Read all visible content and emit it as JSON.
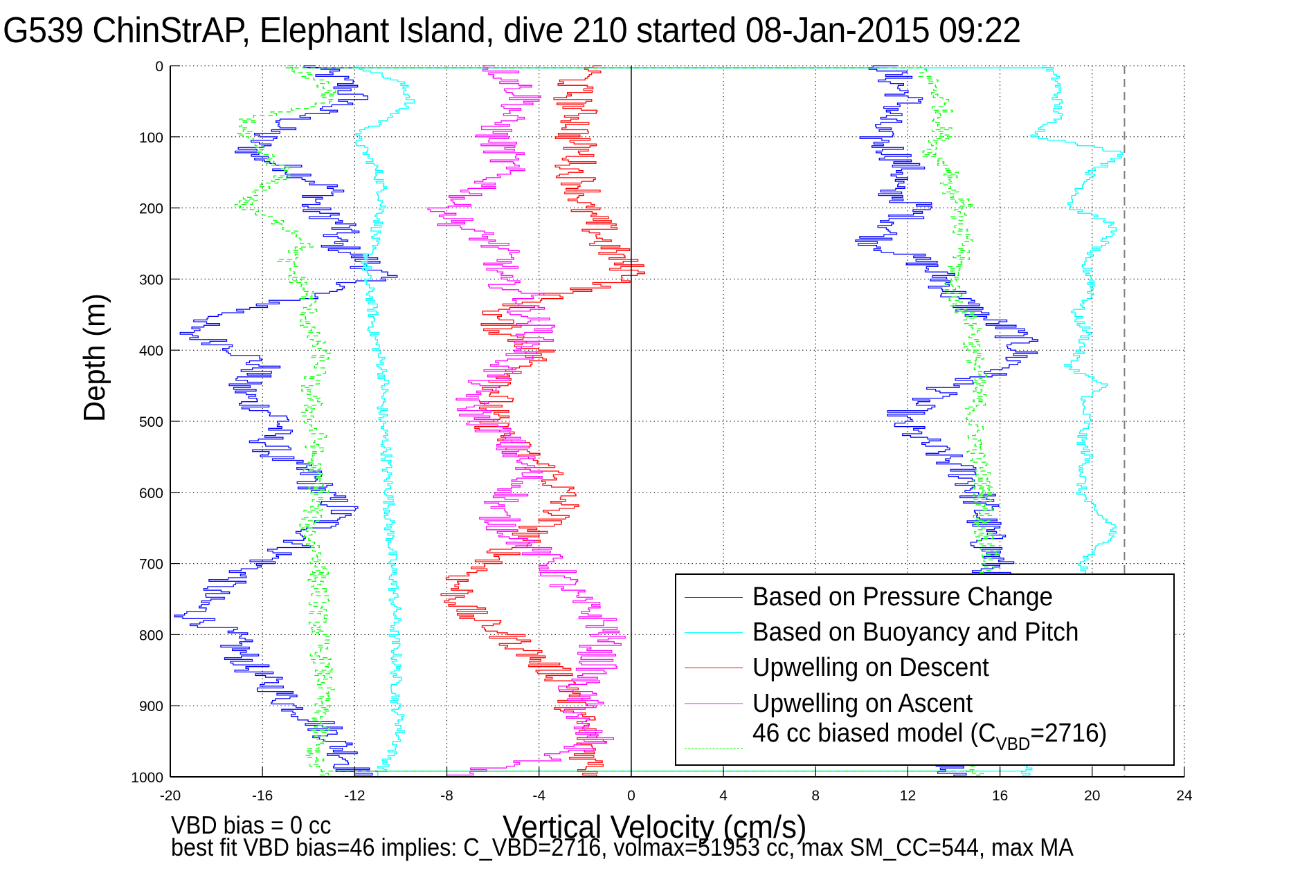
{
  "chart_data": {
    "type": "line",
    "title": "G539 ChinStrAP, Elephant Island, dive 210 started 08-Jan-2015 09:22",
    "xlabel": "Vertical Velocity (cm/s)",
    "ylabel": "Depth (m)",
    "xlim": [
      -20,
      24
    ],
    "ylim": [
      0,
      1000
    ],
    "y_reversed": true,
    "grid": true,
    "xticks": [
      "-20",
      "-16",
      "-12",
      "-8",
      "-4",
      "0",
      "4",
      "8",
      "12",
      "16",
      "20",
      "24"
    ],
    "xtick_values": [
      -20,
      -16,
      -12,
      -8,
      -4,
      0,
      4,
      8,
      12,
      16,
      20,
      24
    ],
    "yticks": [
      "0",
      "100",
      "200",
      "300",
      "400",
      "500",
      "600",
      "700",
      "800",
      "900",
      "1000"
    ],
    "ytick_values": [
      0,
      100,
      200,
      300,
      400,
      500,
      600,
      700,
      800,
      900,
      1000
    ],
    "zero_line_x": 0,
    "reference_line": {
      "x": 21.4,
      "style": "dashed",
      "color": "#808080"
    },
    "legend_position": "bottom-right",
    "depth_step_m": 25,
    "series": [
      {
        "name": "Based on Pressure Change",
        "color": "#0000ff",
        "style": "solid",
        "noise": 0.9,
        "descent_x": [
          -14,
          -12.5,
          -12,
          -14.5,
          -16,
          -16.5,
          -14.5,
          -13,
          -14,
          -12.5,
          -13,
          -11.5,
          -11,
          -14,
          -17.5,
          -19.5,
          -17,
          -16,
          -17,
          -16.5,
          -15,
          -15.8,
          -15.5,
          -14,
          -13.5,
          -12.5,
          -13.5,
          -14.5,
          -16,
          -17.5,
          -18.5,
          -19,
          -17.5,
          -17,
          -16.5,
          -15.5,
          -14.8,
          -13.5,
          -12.8,
          -12.2,
          -12
        ],
        "ascent_x": [
          11,
          11.5,
          12,
          11,
          10.5,
          11.5,
          12,
          11,
          12.5,
          11.5,
          10.5,
          12.5,
          13.5,
          14,
          15,
          16.5,
          17,
          16.5,
          14,
          12.5,
          11.5,
          12.5,
          13.5,
          14.5,
          15,
          15.2,
          15.3,
          15.5,
          15.8,
          15.5,
          15.5,
          15.2,
          14.5,
          13.5,
          13.5,
          13,
          12.8,
          13,
          13.5,
          14,
          14
        ]
      },
      {
        "name": "Based on Buoyancy and Pitch",
        "color": "#00ffff",
        "style": "solid",
        "noise": 0.25,
        "descent_x": [
          -12,
          -10,
          -9.5,
          -10.5,
          -12,
          -11.5,
          -11,
          -10.8,
          -10.8,
          -11,
          -11.2,
          -11.5,
          -11.5,
          -11.3,
          -11.2,
          -11.2,
          -11.0,
          -10.8,
          -10.7,
          -10.8,
          -10.8,
          -10.7,
          -10.6,
          -10.6,
          -10.5,
          -10.5,
          -10.5,
          -10.4,
          -10.4,
          -10.3,
          -10.3,
          -10.2,
          -10.3,
          -10.2,
          -10.2,
          -10.2,
          -10.2,
          -10.0,
          -10.1,
          -10.5,
          -11
        ],
        "ascent_x": [
          18,
          18.5,
          18.5,
          18.5,
          17.5,
          21.5,
          20,
          19.5,
          19,
          21,
          20.5,
          19.5,
          20,
          20,
          19.2,
          19.8,
          19.5,
          19.0,
          20.5,
          19.5,
          19.8,
          19.5,
          19.8,
          19.6,
          19.5,
          20.0,
          21,
          20.5,
          19.5,
          19.8,
          20.0,
          20.0,
          19.8,
          19.5,
          19.5,
          19.2,
          19.0,
          18.5,
          18.0,
          17.5,
          17
        ]
      },
      {
        "name": "Upwelling on Descent",
        "color": "#ff0000",
        "style": "solid",
        "noise": 0.9,
        "descent_x": [
          -1.5,
          -2.5,
          -2.5,
          -2.2,
          -2.5,
          -2.2,
          -2.5,
          -2.0,
          -2.2,
          -1.5,
          -1.2,
          -0.5,
          0.3,
          -3.5,
          -6,
          -5.5,
          -4,
          -4.5,
          -5.5,
          -6,
          -6.2,
          -5.5,
          -4.5,
          -3.5,
          -3,
          -3,
          -4,
          -5,
          -6,
          -7.5,
          -7.5,
          -7,
          -5.5,
          -4.5,
          -3.5,
          -2.5,
          -2.5,
          -2.2,
          -1.8,
          -1.8,
          -1.5
        ],
        "ascent_x": []
      },
      {
        "name": "Upwelling on Ascent",
        "color": "#ff00ff",
        "style": "solid",
        "noise": 0.9,
        "descent_x": [
          -6,
          -5,
          -4.5,
          -5.5,
          -6,
          -5.5,
          -5.5,
          -6.5,
          -8,
          -7.5,
          -6,
          -5.5,
          -6,
          -4.5,
          -4.5,
          -4,
          -4.5,
          -5.5,
          -6.5,
          -7,
          -6.5,
          -5.5,
          -5,
          -4.5,
          -5,
          -6,
          -5.5,
          -4.5,
          -3.5,
          -3,
          -2.5,
          -1.5,
          -1,
          -1.5,
          -1.5,
          -2.5,
          -2,
          -2.5,
          -1.5,
          -3.5,
          -8
        ],
        "ascent_x": []
      },
      {
        "name": "46 cc biased model (C_VBD=2716)",
        "color": "#00ff00",
        "style": "dashed",
        "noise": 0.45,
        "descent_x": [
          -15,
          -13.5,
          -13,
          -16.5,
          -17,
          -16,
          -15,
          -16,
          -17,
          -15,
          -14,
          -15,
          -14.5,
          -14,
          -14,
          -14,
          -13.5,
          -13.5,
          -14,
          -13.8,
          -14,
          -13.6,
          -13.8,
          -13.8,
          -13.5,
          -13.8,
          -14,
          -13.8,
          -13.5,
          -13.6,
          -13.5,
          -13.6,
          -13.5,
          -13.5,
          -13.4,
          -13.3,
          -13.5,
          -13.5,
          -13.6,
          -13.8,
          -13.5
        ],
        "ascent_x": [
          12.5,
          13,
          13.5,
          13.5,
          13.5,
          13,
          14,
          13.8,
          14.5,
          14,
          14.5,
          14.2,
          14,
          14,
          14.5,
          15,
          14.8,
          15,
          15,
          15,
          14.8,
          15,
          15,
          15.2,
          15.3,
          15.3,
          15.2,
          15.5,
          15.5,
          15.3,
          15.5,
          15.5,
          15.2,
          15.2,
          15,
          15,
          14.8,
          14.5,
          14.5,
          14.8,
          15
        ]
      }
    ],
    "legend": [
      {
        "label": "Based on Pressure Change",
        "color": "#0000ff",
        "style": "solid"
      },
      {
        "label": "Based on Buoyancy and Pitch",
        "color": "#00ffff",
        "style": "solid"
      },
      {
        "label": "Upwelling on Descent",
        "color": "#ff0000",
        "style": "solid"
      },
      {
        "label": "Upwelling on Ascent",
        "color": "#ff00ff",
        "style": "solid"
      },
      {
        "label_prefix": "46 cc biased model (C",
        "label_sub": "VBD",
        "label_suffix": "=2716)",
        "color": "#00ff00",
        "style": "dashed"
      }
    ]
  },
  "annotations": {
    "vbd_bias": "VBD bias = 0 cc",
    "best_fit": "best fit VBD bias=46 implies: C_VBD=2716, volmax=51953 cc, max SM_CC=544, max MA"
  }
}
